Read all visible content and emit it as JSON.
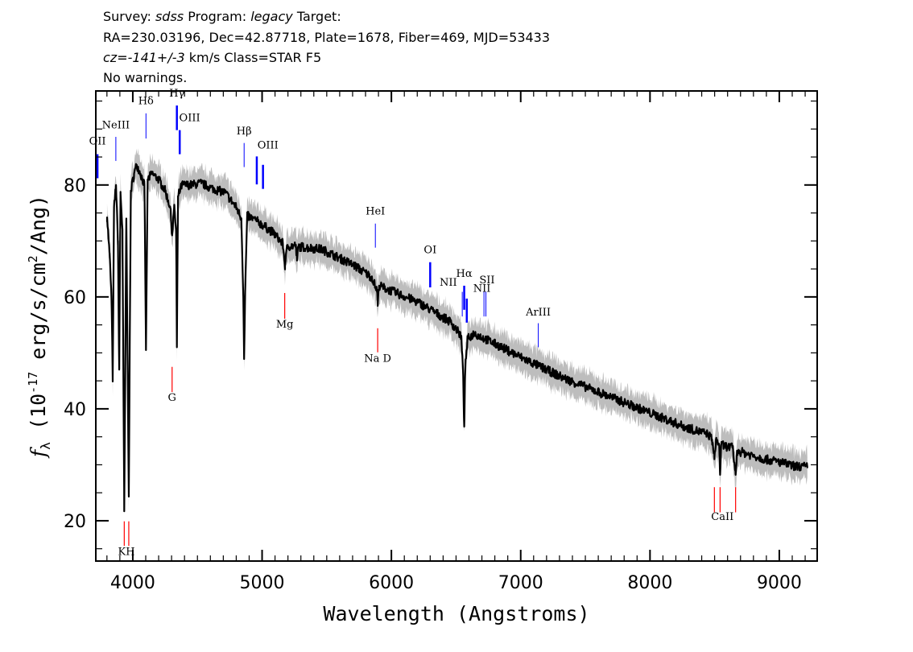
{
  "header": {
    "line1": {
      "survey_label": "Survey: ",
      "survey": "sdss",
      "program_label": " Program: ",
      "program": "legacy",
      "target_label": " Target:"
    },
    "line2": "RA=230.03196, Dec=42.87718, Plate=1678, Fiber=469, MJD=53433",
    "line3": {
      "cz_label": "cz=",
      "cz_value": "-141+/-3",
      "rest": " km/s Class=STAR F5"
    },
    "line4": "No warnings."
  },
  "chart_data": {
    "type": "line",
    "xlabel": "Wavelength (Angstroms)",
    "ylabel_parts": {
      "f": "f",
      "sub": "λ",
      "pre": " (10",
      "exp": "-17",
      "post": " erg/s/cm",
      "exp2": "2",
      "end": "/Ang)"
    },
    "xlim": [
      3714,
      9293
    ],
    "ylim": [
      12.8,
      96.8
    ],
    "xticks": [
      4000,
      5000,
      6000,
      7000,
      8000,
      9000
    ],
    "xtick_labels": [
      "4000",
      "5000",
      "6000",
      "7000",
      "8000",
      "9000"
    ],
    "yticks": [
      20,
      40,
      60,
      80
    ],
    "ytick_labels": [
      "20",
      "40",
      "60",
      "80"
    ],
    "colors": {
      "flux": "#000000",
      "error_band": "#bdbdbd",
      "emission": "#0000ff",
      "absorption": "#ff0000"
    },
    "spectrum": [
      [
        3801,
        74.2
      ],
      [
        3820,
        68
      ],
      [
        3835,
        60
      ],
      [
        3845,
        45.5
      ],
      [
        3855,
        76
      ],
      [
        3870,
        80
      ],
      [
        3885,
        70
      ],
      [
        3895,
        47
      ],
      [
        3905,
        78.5
      ],
      [
        3920,
        72
      ],
      [
        3934,
        21.7
      ],
      [
        3950,
        74
      ],
      [
        3969,
        25
      ],
      [
        3985,
        79
      ],
      [
        4010,
        82
      ],
      [
        4031,
        83.6
      ],
      [
        4060,
        82
      ],
      [
        4090,
        80
      ],
      [
        4102,
        50.5
      ],
      [
        4115,
        81
      ],
      [
        4150,
        82
      ],
      [
        4200,
        81
      ],
      [
        4250,
        79
      ],
      [
        4290,
        76
      ],
      [
        4304,
        71
      ],
      [
        4320,
        76
      ],
      [
        4335,
        72
      ],
      [
        4341,
        51
      ],
      [
        4350,
        78
      ],
      [
        4380,
        80
      ],
      [
        4450,
        80
      ],
      [
        4530,
        80.3
      ],
      [
        4600,
        79.5
      ],
      [
        4716,
        78.6
      ],
      [
        4800,
        76
      ],
      [
        4840,
        74
      ],
      [
        4855,
        60
      ],
      [
        4861,
        49
      ],
      [
        4870,
        62
      ],
      [
        4885,
        74.5
      ],
      [
        4965,
        73.5
      ],
      [
        5090,
        71.4
      ],
      [
        5160,
        69.5
      ],
      [
        5177,
        65.6
      ],
      [
        5195,
        69
      ],
      [
        5260,
        69.2
      ],
      [
        5270,
        66.5
      ],
      [
        5280,
        69
      ],
      [
        5464,
        68.5
      ],
      [
        5713,
        65.6
      ],
      [
        5850,
        63.5
      ],
      [
        5890,
        61
      ],
      [
        5894,
        58.4
      ],
      [
        5905,
        62
      ],
      [
        6211,
        59
      ],
      [
        6460,
        55.5
      ],
      [
        6540,
        53
      ],
      [
        6555,
        46
      ],
      [
        6563,
        36.8
      ],
      [
        6572,
        48
      ],
      [
        6590,
        52.5
      ],
      [
        6640,
        53.5
      ],
      [
        6709,
        52.7
      ],
      [
        7020,
        49
      ],
      [
        7332,
        45.5
      ],
      [
        7643,
        42.6
      ],
      [
        7954,
        39.7
      ],
      [
        8266,
        36.8
      ],
      [
        8453,
        35.4
      ],
      [
        8480,
        34.5
      ],
      [
        8498,
        31
      ],
      [
        8510,
        34.5
      ],
      [
        8535,
        33.5
      ],
      [
        8542,
        28.2
      ],
      [
        8550,
        33.5
      ],
      [
        8640,
        33
      ],
      [
        8662,
        28.2
      ],
      [
        8675,
        32.5
      ],
      [
        8889,
        31
      ],
      [
        9000,
        30.5
      ],
      [
        9100,
        29.8
      ],
      [
        9220,
        29.6
      ]
    ],
    "emission_lines": [
      {
        "label": "OII",
        "wave": 3727,
        "top": 85.5,
        "bottom": 81.2,
        "label_y": 87.2,
        "label_wave": 3727,
        "width": 2.5
      },
      {
        "label": "NeIII",
        "wave": 3869,
        "top": 88.6,
        "bottom": 84.3,
        "label_y": 90.1,
        "label_wave": 3869,
        "width": 1
      },
      {
        "label": "Hδ",
        "wave": 4102,
        "top": 92.8,
        "bottom": 88.3,
        "label_y": 94.4,
        "label_wave": 4102,
        "width": 1
      },
      {
        "label": "Hγ",
        "wave": 4341,
        "top": 94.2,
        "bottom": 89.8,
        "label_y": 95.8,
        "label_wave": 4341,
        "width": 2.5
      },
      {
        "label": "OIII",
        "wave": 4363,
        "top": 89.8,
        "bottom": 85.5,
        "label_y": 91.4,
        "label_wave": 4440,
        "width": 2.5
      },
      {
        "label": "Hβ",
        "wave": 4861,
        "top": 87.5,
        "bottom": 83.2,
        "label_y": 89.0,
        "label_wave": 4861,
        "width": 1
      },
      {
        "label": "OIII",
        "wave": 4959,
        "top": 85.1,
        "bottom": 80.1,
        "label_y": 86.5,
        "label_wave": 5045,
        "width": 2.5
      },
      {
        "label": "",
        "wave": 5007,
        "top": 83.6,
        "bottom": 79.3,
        "label_y": 86.5,
        "label_wave": 5007,
        "width": 2.5
      },
      {
        "label": "HeI",
        "wave": 5876,
        "top": 73.1,
        "bottom": 68.8,
        "label_y": 74.7,
        "label_wave": 5876,
        "width": 1
      },
      {
        "label": "OI",
        "wave": 6300,
        "top": 66.2,
        "bottom": 61.7,
        "label_y": 67.8,
        "label_wave": 6300,
        "width": 2.5
      },
      {
        "label": "NII",
        "wave": 6548,
        "top": 60.9,
        "bottom": 56.5,
        "label_y": 62.0,
        "label_wave": 6440,
        "width": 1
      },
      {
        "label": "Hα",
        "wave": 6563,
        "top": 62.0,
        "bottom": 57.7,
        "label_y": 63.6,
        "label_wave": 6563,
        "width": 2.5
      },
      {
        "label": "NII",
        "wave": 6583,
        "top": 59.7,
        "bottom": 55.4,
        "label_y": 60.9,
        "label_wave": 6700,
        "width": 2.5
      },
      {
        "label": "SII",
        "wave": 6716,
        "top": 60.9,
        "bottom": 56.5,
        "label_y": 62.4,
        "label_wave": 6740,
        "width": 1
      },
      {
        "label": "",
        "wave": 6731,
        "top": 60.9,
        "bottom": 56.5,
        "label_y": 62.4,
        "label_wave": 6731,
        "width": 1
      },
      {
        "label": "ArIII",
        "wave": 7136,
        "top": 55.3,
        "bottom": 51.0,
        "label_y": 56.7,
        "label_wave": 7136,
        "width": 1
      }
    ],
    "absorption_lines": [
      {
        "label": "KH",
        "wave": 3934,
        "top": 19.9,
        "bottom": 15.5,
        "label_y": 13.9,
        "label_wave": 3951
      },
      {
        "label": "",
        "wave": 3969,
        "top": 19.9,
        "bottom": 15.5,
        "label_y": 13.9,
        "label_wave": 3969
      },
      {
        "label": "G",
        "wave": 4304,
        "top": 47.5,
        "bottom": 43.0,
        "label_y": 41.4,
        "label_wave": 4304
      },
      {
        "label": "Mg",
        "wave": 5175,
        "top": 60.7,
        "bottom": 56.1,
        "label_y": 54.5,
        "label_wave": 5175
      },
      {
        "label": "Na  D",
        "wave": 5894,
        "top": 54.4,
        "bottom": 50.1,
        "label_y": 48.4,
        "label_wave": 5894
      },
      {
        "label": "CaII",
        "wave": 8498,
        "top": 26.0,
        "bottom": 21.5,
        "label_y": 20.1,
        "label_wave": 8560
      },
      {
        "label": "",
        "wave": 8542,
        "top": 26.0,
        "bottom": 21.5,
        "label_y": 20.1,
        "label_wave": 8542
      },
      {
        "label": "",
        "wave": 8662,
        "top": 26.0,
        "bottom": 21.5,
        "label_y": 20.1,
        "label_wave": 8662
      }
    ]
  }
}
